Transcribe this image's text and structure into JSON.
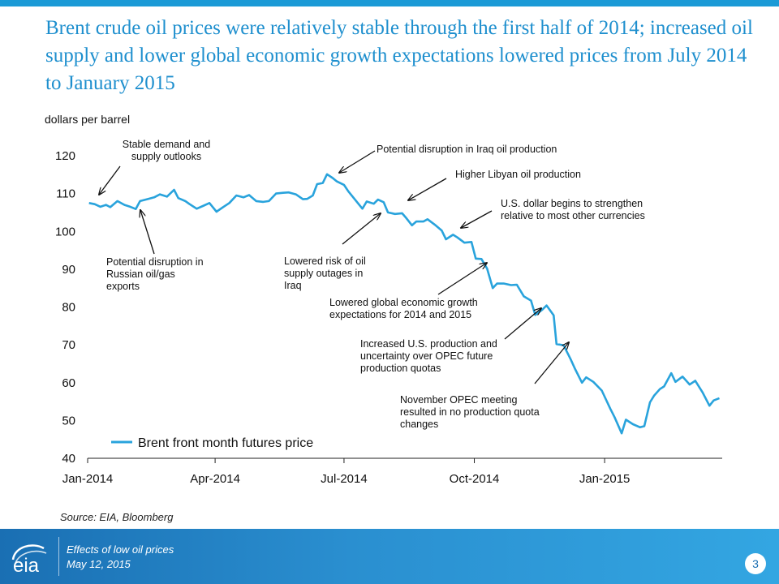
{
  "slide": {
    "title": "Brent crude oil prices were relatively stable through the first half of 2014; increased oil supply and lower global economic growth expectations lowered prices from July 2014 to January 2015",
    "source": "Source: EIA, Bloomberg",
    "footer_line1": "Effects of low oil prices",
    "footer_line2": "May 12, 2015",
    "page_number": "3",
    "logo_text": "eia"
  },
  "colors": {
    "accent": "#1e8fce",
    "series": "#29a3dc",
    "footer": "#1a6fb3"
  },
  "chart_data": {
    "type": "line",
    "ylabel": "dollars per barrel",
    "ylim": [
      40,
      120
    ],
    "yticks": [
      "40",
      "50",
      "60",
      "70",
      "80",
      "90",
      "100",
      "110",
      "120"
    ],
    "xticks": [
      "Jan-2014",
      "Apr-2014",
      "Jul-2014",
      "Oct-2014",
      "Jan-2015"
    ],
    "xtick_dates": [
      "2014-01-01",
      "2014-04-01",
      "2014-07-01",
      "2014-10-01",
      "2015-01-01"
    ],
    "xlim": [
      "2014-01-01",
      "2015-03-25"
    ],
    "legend": "bottom-left",
    "series": [
      {
        "name": "Brent front month futures price",
        "points": [
          [
            "2014-01-02",
            107.5
          ],
          [
            "2014-01-06",
            107.2
          ],
          [
            "2014-01-10",
            106.5
          ],
          [
            "2014-01-14",
            107.0
          ],
          [
            "2014-01-17",
            106.4
          ],
          [
            "2014-01-22",
            108.0
          ],
          [
            "2014-01-27",
            107.0
          ],
          [
            "2014-01-31",
            106.5
          ],
          [
            "2014-02-04",
            105.9
          ],
          [
            "2014-02-07",
            108.0
          ],
          [
            "2014-02-12",
            108.5
          ],
          [
            "2014-02-17",
            109.0
          ],
          [
            "2014-02-21",
            109.8
          ],
          [
            "2014-02-26",
            109.2
          ],
          [
            "2014-03-03",
            111.0
          ],
          [
            "2014-03-06",
            108.8
          ],
          [
            "2014-03-11",
            108.0
          ],
          [
            "2014-03-14",
            107.2
          ],
          [
            "2014-03-19",
            106.0
          ],
          [
            "2014-03-24",
            106.8
          ],
          [
            "2014-03-28",
            107.5
          ],
          [
            "2014-04-02",
            105.2
          ],
          [
            "2014-04-07",
            106.5
          ],
          [
            "2014-04-11",
            107.5
          ],
          [
            "2014-04-16",
            109.5
          ],
          [
            "2014-04-21",
            109.0
          ],
          [
            "2014-04-25",
            109.6
          ],
          [
            "2014-04-30",
            108.0
          ],
          [
            "2014-05-05",
            107.8
          ],
          [
            "2014-05-09",
            108.0
          ],
          [
            "2014-05-14",
            110.0
          ],
          [
            "2014-05-19",
            110.2
          ],
          [
            "2014-05-23",
            110.3
          ],
          [
            "2014-05-28",
            109.8
          ],
          [
            "2014-06-02",
            108.5
          ],
          [
            "2014-06-05",
            108.6
          ],
          [
            "2014-06-09",
            109.5
          ],
          [
            "2014-06-12",
            112.5
          ],
          [
            "2014-06-16",
            112.8
          ],
          [
            "2014-06-19",
            115.1
          ],
          [
            "2014-06-23",
            114.1
          ],
          [
            "2014-06-26",
            113.2
          ],
          [
            "2014-07-01",
            112.3
          ],
          [
            "2014-07-04",
            110.6
          ],
          [
            "2014-07-09",
            108.3
          ],
          [
            "2014-07-14",
            106.0
          ],
          [
            "2014-07-17",
            107.9
          ],
          [
            "2014-07-22",
            107.3
          ],
          [
            "2014-07-25",
            108.4
          ],
          [
            "2014-07-29",
            107.7
          ],
          [
            "2014-08-01",
            105.0
          ],
          [
            "2014-08-06",
            104.6
          ],
          [
            "2014-08-11",
            104.8
          ],
          [
            "2014-08-14",
            103.5
          ],
          [
            "2014-08-18",
            101.6
          ],
          [
            "2014-08-21",
            102.6
          ],
          [
            "2014-08-26",
            102.6
          ],
          [
            "2014-08-29",
            103.2
          ],
          [
            "2014-09-03",
            101.8
          ],
          [
            "2014-09-08",
            100.2
          ],
          [
            "2014-09-11",
            97.9
          ],
          [
            "2014-09-16",
            99.1
          ],
          [
            "2014-09-19",
            98.4
          ],
          [
            "2014-09-24",
            97.0
          ],
          [
            "2014-09-29",
            97.2
          ],
          [
            "2014-10-02",
            92.8
          ],
          [
            "2014-10-06",
            92.7
          ],
          [
            "2014-10-10",
            90.2
          ],
          [
            "2014-10-14",
            85.0
          ],
          [
            "2014-10-17",
            86.2
          ],
          [
            "2014-10-22",
            86.2
          ],
          [
            "2014-10-27",
            85.8
          ],
          [
            "2014-10-31",
            85.9
          ],
          [
            "2014-11-05",
            82.8
          ],
          [
            "2014-11-10",
            81.7
          ],
          [
            "2014-11-13",
            77.9
          ],
          [
            "2014-11-18",
            79.3
          ],
          [
            "2014-11-21",
            80.4
          ],
          [
            "2014-11-26",
            77.8
          ],
          [
            "2014-11-28",
            70.2
          ],
          [
            "2014-12-03",
            69.9
          ],
          [
            "2014-12-08",
            66.2
          ],
          [
            "2014-12-11",
            63.7
          ],
          [
            "2014-12-16",
            60.0
          ],
          [
            "2014-12-19",
            61.4
          ],
          [
            "2014-12-24",
            60.2
          ],
          [
            "2014-12-30",
            57.9
          ],
          [
            "2015-01-05",
            53.1
          ],
          [
            "2015-01-08",
            50.9
          ],
          [
            "2015-01-13",
            46.6
          ],
          [
            "2015-01-16",
            50.2
          ],
          [
            "2015-01-21",
            49.0
          ],
          [
            "2015-01-26",
            48.2
          ],
          [
            "2015-01-29",
            48.5
          ],
          [
            "2015-02-02",
            54.8
          ],
          [
            "2015-02-05",
            56.6
          ],
          [
            "2015-02-09",
            58.3
          ],
          [
            "2015-02-12",
            59.0
          ],
          [
            "2015-02-17",
            62.5
          ],
          [
            "2015-02-20",
            60.2
          ],
          [
            "2015-02-25",
            61.6
          ],
          [
            "2015-03-02",
            59.5
          ],
          [
            "2015-03-06",
            60.5
          ],
          [
            "2015-03-11",
            57.5
          ],
          [
            "2015-03-16",
            53.9
          ],
          [
            "2015-03-19",
            55.3
          ],
          [
            "2015-03-23",
            55.9
          ]
        ]
      }
    ],
    "annotations": [
      {
        "lines": [
          "Stable demand and",
          "supply outlooks"
        ]
      },
      {
        "lines": [
          "Potential disruption in",
          "Russian oil/gas",
          "exports"
        ]
      },
      {
        "lines": [
          "Potential disruption in Iraq oil production"
        ]
      },
      {
        "lines": [
          "Higher Libyan oil production"
        ]
      },
      {
        "lines": [
          "Lowered risk of oil",
          "supply  outages in",
          "Iraq"
        ]
      },
      {
        "lines": [
          "U.S. dollar begins to strengthen",
          "relative to most other currencies"
        ]
      },
      {
        "lines": [
          "Lowered global  economic growth",
          "expectations for 2014 and 2015"
        ]
      },
      {
        "lines": [
          "Increased U.S. production and",
          "uncertainty over OPEC future",
          "production quotas"
        ]
      },
      {
        "lines": [
          "November OPEC meeting",
          "resulted in no production quota",
          "changes"
        ]
      }
    ]
  }
}
